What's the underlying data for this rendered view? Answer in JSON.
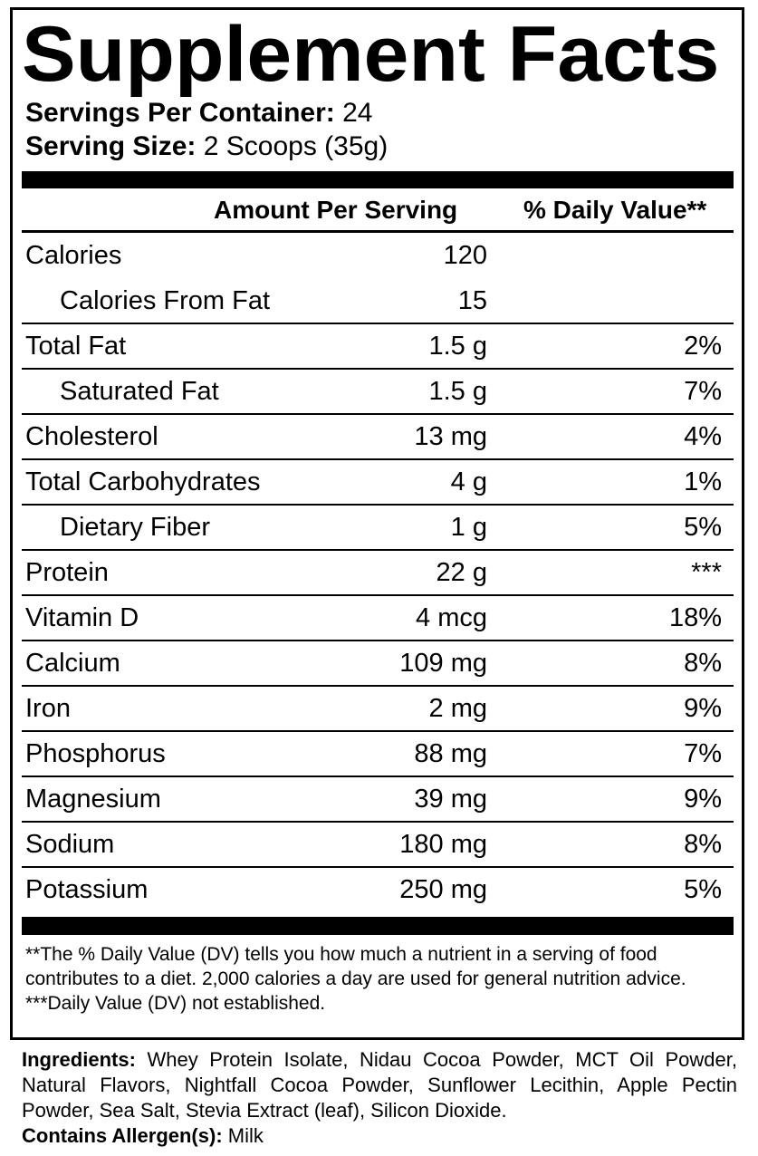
{
  "title": "Supplement Facts",
  "servings_per_container": {
    "label": "Servings Per Container:",
    "value": "24"
  },
  "serving_size": {
    "label": "Serving Size:",
    "value": "2 Scoops (35g)"
  },
  "header": {
    "amount": "Amount Per Serving",
    "dv": "% Daily Value**"
  },
  "rows": [
    {
      "name": "Calories",
      "amount": "120",
      "dv": ""
    },
    {
      "name": "Calories From Fat",
      "amount": "15",
      "dv": ""
    },
    {
      "name": "Total Fat",
      "amount": "1.5 g",
      "dv": "2%"
    },
    {
      "name": "Saturated Fat",
      "amount": "1.5 g",
      "dv": "7%"
    },
    {
      "name": "Cholesterol",
      "amount": "13 mg",
      "dv": "4%"
    },
    {
      "name": "Total Carbohydrates",
      "amount": "4 g",
      "dv": "1%"
    },
    {
      "name": "Dietary Fiber",
      "amount": "1 g",
      "dv": "5%"
    },
    {
      "name": "Protein",
      "amount": "22 g",
      "dv": "***"
    },
    {
      "name": "Vitamin D",
      "amount": "4 mcg",
      "dv": "18%"
    },
    {
      "name": "Calcium",
      "amount": "109 mg",
      "dv": "8%"
    },
    {
      "name": "Iron",
      "amount": "2 mg",
      "dv": "9%"
    },
    {
      "name": "Phosphorus",
      "amount": "88 mg",
      "dv": "7%"
    },
    {
      "name": "Magnesium",
      "amount": "39 mg",
      "dv": "9%"
    },
    {
      "name": "Sodium",
      "amount": "180 mg",
      "dv": "8%"
    },
    {
      "name": "Potassium",
      "amount": "250 mg",
      "dv": "5%"
    }
  ],
  "footnotes": [
    "**The % Daily Value (DV) tells you how much a nutrient in a serving of food contributes to a diet. 2,000 calories a day are used for general nutrition advice.",
    "***Daily Value (DV) not established."
  ],
  "ingredients": {
    "label": "Ingredients:",
    "text": "Whey Protein Isolate, Nidau Cocoa Powder, MCT Oil Powder, Natural Flavors, Nightfall Cocoa Powder, Sunflower Lecithin, Apple Pectin Powder, Sea Salt, Stevia Extract (leaf), Silicon Dioxide."
  },
  "allergens": {
    "label": "Contains Allergen(s):",
    "text": "Milk"
  }
}
